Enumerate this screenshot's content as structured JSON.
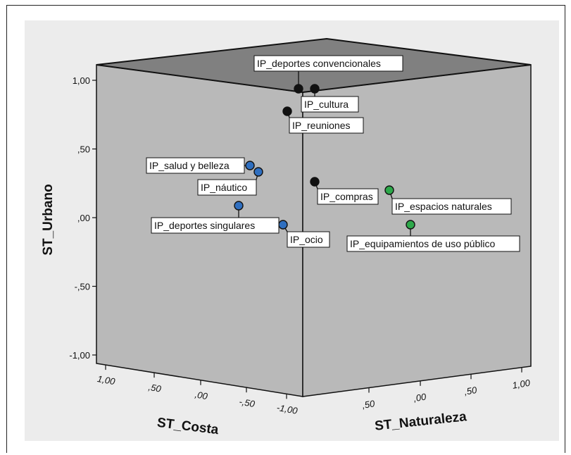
{
  "chart_data": {
    "type": "scatter",
    "subtype": "3d-scatter",
    "axes": {
      "vertical": {
        "label": "ST_Urbano",
        "range": [
          -1.0,
          1.0
        ],
        "ticks": [
          "1,00",
          ",50",
          ",00",
          "-,50",
          "-1,00"
        ]
      },
      "left_depth": {
        "label": "ST_Costa",
        "range": [
          1.0,
          -1.0
        ],
        "ticks": [
          "1,00",
          ",50",
          ",00",
          "-,50",
          "-1,00"
        ]
      },
      "right_depth": {
        "label": "ST_Naturaleza",
        "ticks": [
          ",50",
          ",00",
          ",50",
          "1,00"
        ]
      }
    },
    "series_colors": {
      "black": "#111111",
      "blue": "#2f6fc0",
      "green": "#2da84a"
    },
    "points": [
      {
        "label": "IP_deportes convencionales",
        "urbano": 0.93,
        "color": "black"
      },
      {
        "label": "IP_cultura",
        "urbano": 0.93,
        "color": "black"
      },
      {
        "label": "IP_reuniones",
        "urbano": 0.76,
        "color": "black"
      },
      {
        "label": "IP_salud y belleza",
        "urbano": 0.37,
        "color": "blue"
      },
      {
        "label": "IP_náutico",
        "urbano": 0.32,
        "color": "blue"
      },
      {
        "label": "IP_deportes singulares",
        "urbano": 0.08,
        "color": "blue"
      },
      {
        "label": "IP_ocio",
        "urbano": -0.06,
        "color": "blue"
      },
      {
        "label": "IP_compras",
        "urbano": 0.25,
        "color": "black"
      },
      {
        "label": "IP_espacios naturales",
        "urbano": 0.18,
        "color": "green"
      },
      {
        "label": "IP_equipamientos de uso público",
        "urbano": -0.06,
        "color": "green"
      }
    ]
  }
}
